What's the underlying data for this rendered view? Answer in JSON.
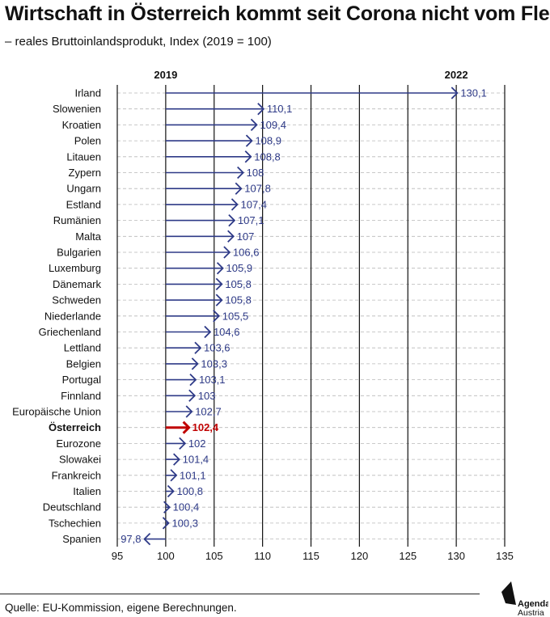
{
  "header": {
    "title": "Wirtschaft in Österreich kommt seit Corona nicht vom Fleck",
    "subtitle": "– reales Bruttoinlandsprodukt, Index (2019 = 100)"
  },
  "footer": {
    "source": "Quelle: EU-Kommission, eigene Berechnungen.",
    "logo_line1": "Agenda",
    "logo_line2": "Austria"
  },
  "colors": {
    "arrow": "#2e3a87",
    "highlight": "#c00000",
    "grid": "#b8b8b8",
    "axis": "#111111"
  },
  "chart_data": {
    "type": "bar",
    "style": "arrow",
    "baseline": 100,
    "top_labels": [
      {
        "text": "2019",
        "at": 100
      },
      {
        "text": "2022",
        "at": 130
      }
    ],
    "xlim": [
      95,
      135
    ],
    "xticks": [
      95,
      100,
      105,
      110,
      115,
      120,
      125,
      130,
      135
    ],
    "highlight": "Österreich",
    "categories": [
      "Irland",
      "Slowenien",
      "Kroatien",
      "Polen",
      "Litauen",
      "Zypern",
      "Ungarn",
      "Estland",
      "Rumänien",
      "Malta",
      "Bulgarien",
      "Luxemburg",
      "Dänemark",
      "Schweden",
      "Niederlande",
      "Griechenland",
      "Lettland",
      "Belgien",
      "Portugal",
      "Finnland",
      "Europäische Union",
      "Österreich",
      "Eurozone",
      "Slowakei",
      "Frankreich",
      "Italien",
      "Deutschland",
      "Tschechien",
      "Spanien"
    ],
    "values": [
      130.1,
      110.1,
      109.4,
      108.9,
      108.8,
      108,
      107.8,
      107.4,
      107.1,
      107,
      106.6,
      105.9,
      105.8,
      105.8,
      105.5,
      104.6,
      103.6,
      103.3,
      103.1,
      103,
      102.7,
      102.4,
      102,
      101.4,
      101.1,
      100.8,
      100.4,
      100.3,
      97.8
    ],
    "value_labels": [
      "130,1",
      "110,1",
      "109,4",
      "108,9",
      "108,8",
      "108",
      "107,8",
      "107,4",
      "107,1",
      "107",
      "106,6",
      "105,9",
      "105,8",
      "105,8",
      "105,5",
      "104,6",
      "103,6",
      "103,3",
      "103,1",
      "103",
      "102,7",
      "102,4",
      "102",
      "101,4",
      "101,1",
      "100,8",
      "100,4",
      "100,3",
      "97,8"
    ]
  }
}
